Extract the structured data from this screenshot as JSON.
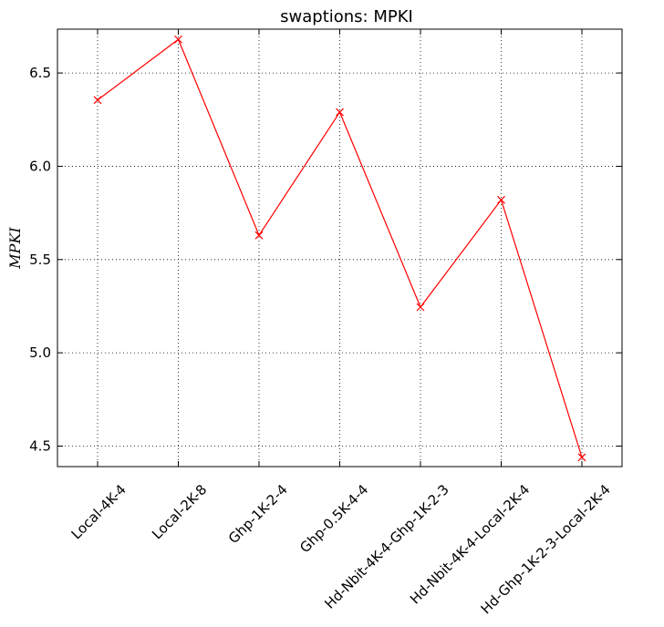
{
  "chart_data": {
    "type": "line",
    "title": "swaptions: MPKI",
    "xlabel": "",
    "ylabel": "MPKI",
    "categories": [
      "Local-4K-4",
      "Local-2K-8",
      "Ghp-1K-2-4",
      "Ghp-0.5K-4-4",
      "Hd-Nbit-4K-4-Ghp-1K-2-3",
      "Hd-Nbit-4K-4-Local-2K-4",
      "Hd-Ghp-1K-2-3-Local-2K-4"
    ],
    "series": [
      {
        "color": "#ff0000",
        "marker": "x",
        "values": [
          6.355,
          6.68,
          5.63,
          6.29,
          5.245,
          5.82,
          4.44
        ]
      }
    ],
    "yticks": [
      "4.5",
      "5.0",
      "5.5",
      "6.0",
      "6.5"
    ],
    "ytick_values": [
      4.5,
      5.0,
      5.5,
      6.0,
      6.5
    ],
    "ylim": [
      4.39,
      6.735
    ],
    "grid": true,
    "legend": "none"
  }
}
